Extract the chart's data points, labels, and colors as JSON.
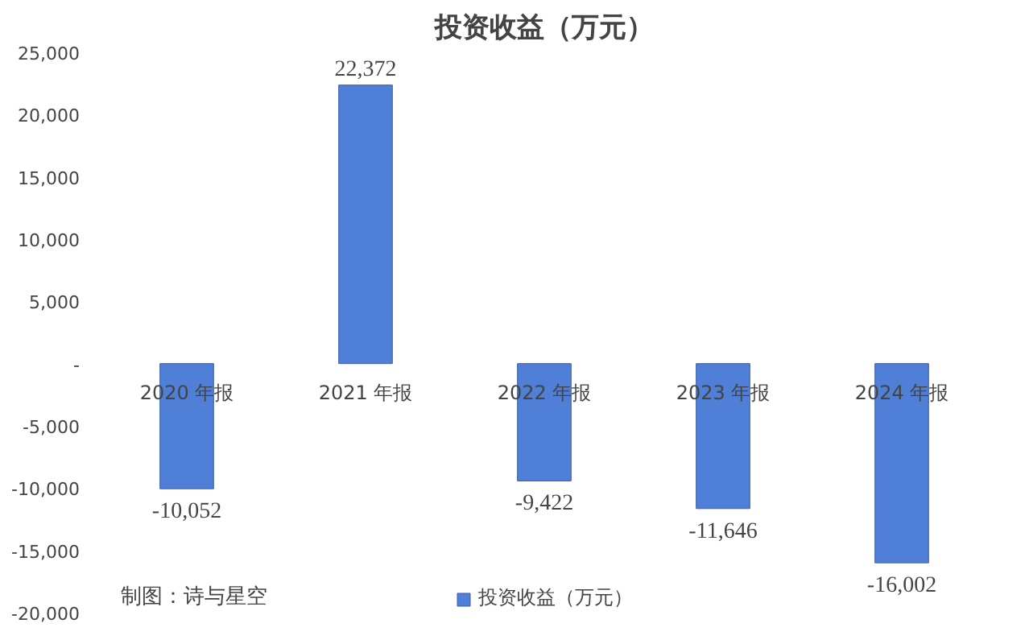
{
  "chart_data": {
    "type": "bar",
    "title": "投资收益（万元）",
    "categories": [
      "2020 年报",
      "2021 年报",
      "2022 年报",
      "2023 年报",
      "2024 年报"
    ],
    "series": [
      {
        "name": "投资收益（万元）",
        "color": "#4f7fd6",
        "values": [
          -10052,
          22372,
          -9422,
          -11646,
          -16002
        ]
      }
    ],
    "ylim": [
      -20000,
      25000
    ],
    "yticks": [
      {
        "value": -20000,
        "label": "-20,000"
      },
      {
        "value": -15000,
        "label": "-15,000"
      },
      {
        "value": -10000,
        "label": "-10,000"
      },
      {
        "value": -5000,
        "label": "-5,000"
      },
      {
        "value": 0,
        "label": "-"
      },
      {
        "value": 5000,
        "label": "5,000"
      },
      {
        "value": 10000,
        "label": "10,000"
      },
      {
        "value": 15000,
        "label": "15,000"
      },
      {
        "value": 20000,
        "label": "20,000"
      },
      {
        "value": 25000,
        "label": "25,000"
      }
    ],
    "value_labels": [
      "-10,052",
      "22,372",
      "-9,422",
      "-11,646",
      "-16,002"
    ],
    "grid": false,
    "legend": "bottom",
    "annotations": [
      "制图：诗与星空"
    ]
  }
}
